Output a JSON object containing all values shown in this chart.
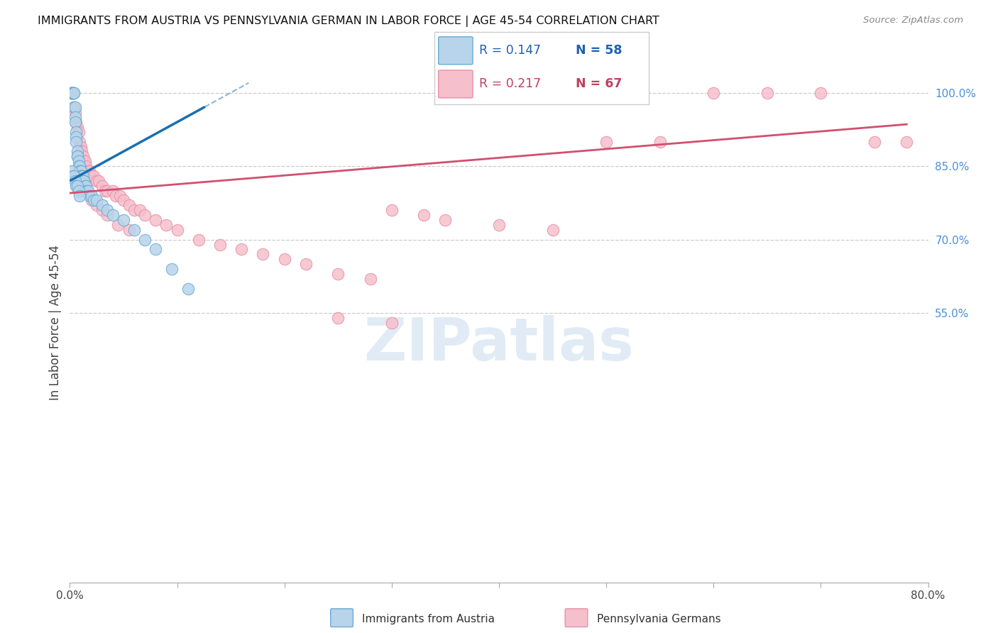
{
  "title": "IMMIGRANTS FROM AUSTRIA VS PENNSYLVANIA GERMAN IN LABOR FORCE | AGE 45-54 CORRELATION CHART",
  "source": "Source: ZipAtlas.com",
  "ylabel": "In Labor Force | Age 45-54",
  "xlim": [
    0.0,
    0.8
  ],
  "ylim": [
    0.0,
    1.06
  ],
  "xtick_vals": [
    0.0,
    0.1,
    0.2,
    0.3,
    0.4,
    0.5,
    0.6,
    0.7,
    0.8
  ],
  "xticklabels": [
    "0.0%",
    "",
    "",
    "",
    "",
    "",
    "",
    "",
    "80.0%"
  ],
  "yticks_right": [
    0.55,
    0.7,
    0.85,
    1.0
  ],
  "ytick_labels_right": [
    "55.0%",
    "70.0%",
    "85.0%",
    "100.0%"
  ],
  "legend_blue_label": "Immigrants from Austria",
  "legend_pink_label": "Pennsylvania Germans",
  "legend_R_blue": "R = 0.147",
  "legend_N_blue": "N = 58",
  "legend_R_pink": "R = 0.217",
  "legend_N_pink": "N = 67",
  "blue_face_color": "#b8d4ea",
  "blue_edge_color": "#6aaad4",
  "pink_face_color": "#f5c0cc",
  "pink_edge_color": "#e890a8",
  "trend_blue_color": "#1a6faf",
  "trend_pink_color": "#d05070",
  "grid_color": "#cccccc",
  "blue_x": [
    0.001,
    0.001,
    0.002,
    0.002,
    0.003,
    0.003,
    0.003,
    0.004,
    0.004,
    0.004,
    0.005,
    0.005,
    0.005,
    0.006,
    0.006,
    0.006,
    0.007,
    0.007,
    0.007,
    0.008,
    0.008,
    0.009,
    0.009,
    0.01,
    0.01,
    0.01,
    0.011,
    0.011,
    0.012,
    0.012,
    0.013,
    0.013,
    0.014,
    0.015,
    0.015,
    0.016,
    0.017,
    0.018,
    0.02,
    0.022,
    0.002,
    0.003,
    0.004,
    0.005,
    0.006,
    0.007,
    0.008,
    0.009,
    0.025,
    0.03,
    0.035,
    0.04,
    0.05,
    0.06,
    0.07,
    0.08,
    0.095,
    0.11
  ],
  "blue_y": [
    1.0,
    1.0,
    1.0,
    1.0,
    1.0,
    1.0,
    1.0,
    1.0,
    1.0,
    0.97,
    0.97,
    0.95,
    0.94,
    0.92,
    0.91,
    0.9,
    0.88,
    0.87,
    0.87,
    0.86,
    0.85,
    0.85,
    0.84,
    0.84,
    0.84,
    0.83,
    0.83,
    0.83,
    0.83,
    0.82,
    0.82,
    0.82,
    0.81,
    0.81,
    0.8,
    0.8,
    0.8,
    0.79,
    0.79,
    0.78,
    0.84,
    0.83,
    0.83,
    0.82,
    0.81,
    0.81,
    0.8,
    0.79,
    0.78,
    0.77,
    0.76,
    0.75,
    0.74,
    0.72,
    0.7,
    0.68,
    0.64,
    0.6
  ],
  "pink_x": [
    0.001,
    0.002,
    0.003,
    0.003,
    0.004,
    0.005,
    0.006,
    0.007,
    0.008,
    0.009,
    0.01,
    0.011,
    0.012,
    0.013,
    0.014,
    0.015,
    0.017,
    0.018,
    0.02,
    0.022,
    0.025,
    0.027,
    0.03,
    0.033,
    0.035,
    0.04,
    0.043,
    0.047,
    0.05,
    0.055,
    0.06,
    0.065,
    0.07,
    0.08,
    0.09,
    0.1,
    0.12,
    0.14,
    0.16,
    0.18,
    0.2,
    0.22,
    0.25,
    0.28,
    0.3,
    0.33,
    0.35,
    0.4,
    0.45,
    0.5,
    0.55,
    0.6,
    0.65,
    0.7,
    0.75,
    0.78,
    0.008,
    0.01,
    0.012,
    0.02,
    0.025,
    0.03,
    0.035,
    0.045,
    0.055,
    0.25,
    0.3
  ],
  "pink_y": [
    1.0,
    1.0,
    1.0,
    1.0,
    0.97,
    0.96,
    0.94,
    0.93,
    0.92,
    0.9,
    0.89,
    0.88,
    0.87,
    0.86,
    0.86,
    0.85,
    0.84,
    0.84,
    0.83,
    0.83,
    0.82,
    0.82,
    0.81,
    0.8,
    0.8,
    0.8,
    0.79,
    0.79,
    0.78,
    0.77,
    0.76,
    0.76,
    0.75,
    0.74,
    0.73,
    0.72,
    0.7,
    0.69,
    0.68,
    0.67,
    0.66,
    0.65,
    0.63,
    0.62,
    0.76,
    0.75,
    0.74,
    0.73,
    0.72,
    0.9,
    0.9,
    1.0,
    1.0,
    1.0,
    0.9,
    0.9,
    0.83,
    0.82,
    0.8,
    0.78,
    0.77,
    0.76,
    0.75,
    0.73,
    0.72,
    0.54,
    0.53
  ],
  "blue_trend_x": [
    0.001,
    0.13
  ],
  "blue_trend_slope": 1.2,
  "blue_trend_intercept": 0.82,
  "pink_trend_x_start": 0.0,
  "pink_trend_x_end": 0.78,
  "pink_trend_slope": 0.18,
  "pink_trend_intercept": 0.795
}
